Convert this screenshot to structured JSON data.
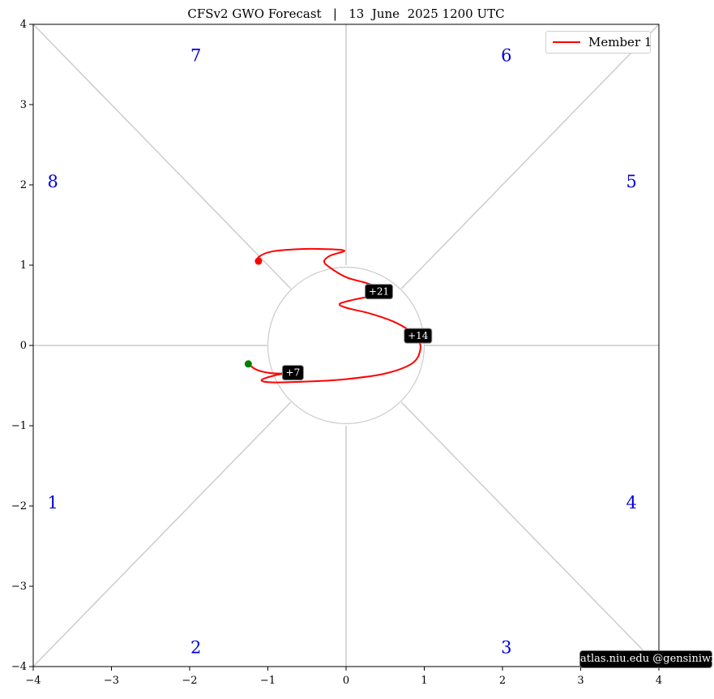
{
  "chart_data": {
    "type": "line",
    "title": "CFSv2 GWO Forecast   |   13  June  2025 1200 UTC",
    "xlim": [
      -4,
      4
    ],
    "ylim": [
      -4,
      4
    ],
    "x_ticks": [
      -4,
      -3,
      -2,
      -1,
      0,
      1,
      2,
      3,
      4
    ],
    "y_ticks": [
      -4,
      -3,
      -2,
      -1,
      0,
      1,
      2,
      3,
      4
    ],
    "x_tick_labels": [
      "−4",
      "−3",
      "−2",
      "−1",
      "0",
      "1",
      "2",
      "3",
      "4"
    ],
    "y_tick_labels": [
      "−4",
      "−3",
      "−2",
      "−1",
      "0",
      "1",
      "2",
      "3",
      "4"
    ],
    "phase_labels": [
      {
        "label": "1",
        "x": -3.75,
        "y": -1.95
      },
      {
        "label": "2",
        "x": -1.92,
        "y": -3.75
      },
      {
        "label": "3",
        "x": 2.05,
        "y": -3.75
      },
      {
        "label": "4",
        "x": 3.65,
        "y": -1.95
      },
      {
        "label": "5",
        "x": 3.65,
        "y": 2.05
      },
      {
        "label": "6",
        "x": 2.05,
        "y": 3.62
      },
      {
        "label": "7",
        "x": -1.92,
        "y": 3.62
      },
      {
        "label": "8",
        "x": -3.75,
        "y": 2.05
      }
    ],
    "series": [
      {
        "name": "Member 1",
        "color": "#ff0000",
        "x": [
          -1.25,
          -1.15,
          -1.0,
          -0.85,
          -0.72,
          -0.9,
          -1.08,
          -0.95,
          -0.5,
          0.0,
          0.5,
          0.85,
          0.95,
          0.92,
          0.82,
          0.6,
          0.3,
          0.0,
          -0.08,
          0.1,
          0.35,
          0.45,
          0.42,
          0.25,
          0.0,
          -0.22,
          -0.28,
          -0.2,
          -0.02,
          -0.25,
          -0.6,
          -0.95,
          -1.12,
          -1.1
        ],
        "y": [
          -0.23,
          -0.3,
          -0.34,
          -0.35,
          -0.34,
          -0.37,
          -0.43,
          -0.46,
          -0.45,
          -0.42,
          -0.35,
          -0.22,
          -0.05,
          0.08,
          0.18,
          0.3,
          0.4,
          0.47,
          0.52,
          0.57,
          0.62,
          0.66,
          0.72,
          0.78,
          0.85,
          0.98,
          1.05,
          1.12,
          1.18,
          1.2,
          1.2,
          1.17,
          1.1,
          1.05
        ]
      }
    ],
    "start_point": {
      "x": -1.25,
      "y": -0.23,
      "color": "#008000"
    },
    "end_point": {
      "x": -1.12,
      "y": 1.05,
      "color": "#ff0000"
    },
    "day_annotations": [
      {
        "label": "+7",
        "x": -0.68,
        "y": -0.34
      },
      {
        "label": "+14",
        "x": 0.92,
        "y": 0.12
      },
      {
        "label": "+21",
        "x": 0.42,
        "y": 0.67
      }
    ],
    "legend": {
      "position": "top-right",
      "entries": [
        "Member 1"
      ]
    },
    "grid": false
  },
  "legend": {
    "label": "Member 1"
  },
  "watermark": "atlas.niu.edu  @gensiniwx"
}
